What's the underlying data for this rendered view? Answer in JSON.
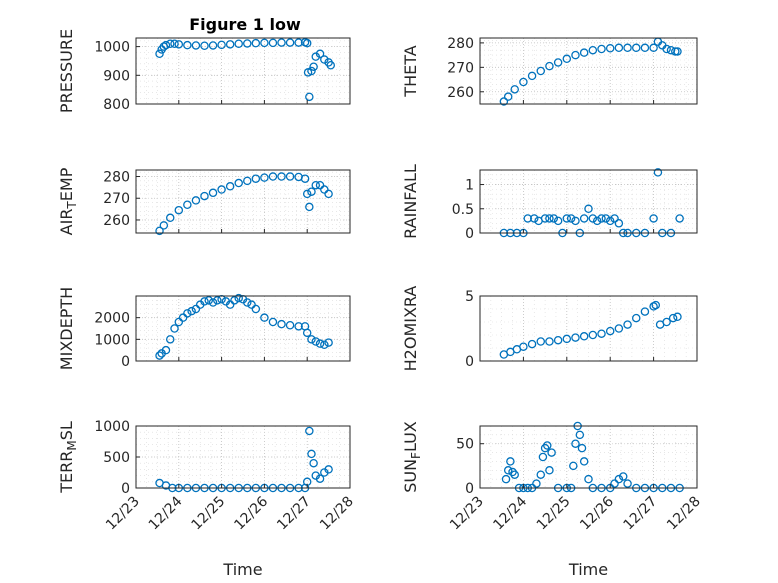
{
  "figure": {
    "title": "Figure 1 low"
  },
  "chart_data": [
    {
      "type": "scatter",
      "ylabel": "PRESSURE",
      "xlabel": "",
      "xlim": [
        0,
        5
      ],
      "ylim": [
        800,
        1030
      ],
      "yticks": [
        800,
        900,
        1000
      ],
      "xticks": [
        0,
        1,
        2,
        3,
        4,
        5
      ],
      "xticklabels": [],
      "marker_color": "#0072BD",
      "grid": true,
      "x": [
        0.55,
        0.6,
        0.65,
        0.7,
        0.8,
        0.9,
        1.0,
        1.2,
        1.4,
        1.6,
        1.8,
        2.0,
        2.2,
        2.4,
        2.6,
        2.8,
        3.0,
        3.2,
        3.4,
        3.6,
        3.8,
        3.95,
        4.0,
        4.02,
        4.05,
        4.1,
        4.15,
        4.2,
        4.3,
        4.4,
        4.5,
        4.55
      ],
      "y": [
        975,
        990,
        1000,
        1005,
        1010,
        1010,
        1008,
        1005,
        1004,
        1003,
        1004,
        1006,
        1008,
        1010,
        1011,
        1012,
        1013,
        1013,
        1014,
        1014,
        1014,
        1015,
        1012,
        910,
        825,
        915,
        930,
        965,
        975,
        955,
        945,
        935
      ]
    },
    {
      "type": "scatter",
      "ylabel": "THETA",
      "xlabel": "",
      "xlim": [
        0,
        5
      ],
      "ylim": [
        255,
        282
      ],
      "yticks": [
        260,
        270,
        280
      ],
      "xticks": [
        0,
        1,
        2,
        3,
        4,
        5
      ],
      "xticklabels": [],
      "marker_color": "#0072BD",
      "grid": true,
      "x": [
        0.55,
        0.65,
        0.8,
        1.0,
        1.2,
        1.4,
        1.6,
        1.8,
        2.0,
        2.2,
        2.4,
        2.6,
        2.8,
        3.0,
        3.2,
        3.4,
        3.6,
        3.8,
        4.0,
        4.1,
        4.2,
        4.3,
        4.4,
        4.5,
        4.55
      ],
      "y": [
        256,
        258,
        261,
        264,
        266.5,
        268.5,
        270.5,
        272,
        273.5,
        275,
        276,
        277,
        277.5,
        277.8,
        278,
        278,
        278,
        278,
        278,
        280.5,
        279,
        277.5,
        277,
        276.5,
        276.5
      ]
    },
    {
      "type": "scatter",
      "ylabel": "AIR_TEMP",
      "xlabel": "",
      "xlim": [
        0,
        5
      ],
      "ylim": [
        254,
        283
      ],
      "yticks": [
        260,
        270,
        280
      ],
      "xticks": [
        0,
        1,
        2,
        3,
        4,
        5
      ],
      "xticklabels": [],
      "marker_color": "#0072BD",
      "grid": true,
      "x": [
        0.55,
        0.65,
        0.8,
        1.0,
        1.2,
        1.4,
        1.6,
        1.8,
        2.0,
        2.2,
        2.4,
        2.6,
        2.8,
        3.0,
        3.2,
        3.4,
        3.6,
        3.8,
        3.95,
        4.0,
        4.05,
        4.1,
        4.2,
        4.3,
        4.4,
        4.5
      ],
      "y": [
        255,
        257.5,
        261,
        264.5,
        267,
        269,
        271,
        272.5,
        274,
        275.5,
        277,
        278,
        279,
        279.5,
        280,
        280,
        280,
        279.8,
        279,
        272,
        266,
        273,
        276,
        276,
        274,
        272
      ]
    },
    {
      "type": "scatter",
      "ylabel": "RAINFALL",
      "xlabel": "",
      "xlim": [
        0,
        5
      ],
      "ylim": [
        0,
        1.3
      ],
      "yticks": [
        0,
        0.5,
        1
      ],
      "yticklabels": [
        "0",
        "0.5",
        "1"
      ],
      "xticks": [
        0,
        1,
        2,
        3,
        4,
        5
      ],
      "xticklabels": [],
      "marker_color": "#0072BD",
      "grid": true,
      "x": [
        0.55,
        0.7,
        0.85,
        1.0,
        1.1,
        1.25,
        1.35,
        1.5,
        1.6,
        1.7,
        1.8,
        1.9,
        2.0,
        2.1,
        2.2,
        2.3,
        2.4,
        2.5,
        2.6,
        2.7,
        2.8,
        2.9,
        3.0,
        3.1,
        3.2,
        3.3,
        3.4,
        3.6,
        3.8,
        4.0,
        4.1,
        4.2,
        4.4,
        4.6
      ],
      "y": [
        0,
        0,
        0,
        0,
        0.3,
        0.3,
        0.25,
        0.3,
        0.3,
        0.3,
        0.25,
        0,
        0.3,
        0.3,
        0.25,
        0,
        0.3,
        0.5,
        0.3,
        0.25,
        0.3,
        0.3,
        0.25,
        0.3,
        0.2,
        0,
        0,
        0,
        0,
        0.3,
        1.25,
        0,
        0,
        0.3
      ]
    },
    {
      "type": "scatter",
      "ylabel": "MIXDEPTH",
      "xlabel": "",
      "xlim": [
        0,
        5
      ],
      "ylim": [
        0,
        3000
      ],
      "yticks": [
        0,
        1000,
        2000
      ],
      "xticks": [
        0,
        1,
        2,
        3,
        4,
        5
      ],
      "xticklabels": [],
      "marker_color": "#0072BD",
      "grid": true,
      "x": [
        0.55,
        0.6,
        0.7,
        0.8,
        0.9,
        1.0,
        1.1,
        1.2,
        1.3,
        1.4,
        1.5,
        1.6,
        1.7,
        1.8,
        1.9,
        2.0,
        2.1,
        2.2,
        2.3,
        2.4,
        2.5,
        2.6,
        2.7,
        2.8,
        3.0,
        3.2,
        3.4,
        3.6,
        3.8,
        3.95,
        4.0,
        4.1,
        4.2,
        4.3,
        4.4,
        4.5
      ],
      "y": [
        250,
        350,
        500,
        1000,
        1500,
        1800,
        2000,
        2200,
        2300,
        2400,
        2600,
        2750,
        2800,
        2700,
        2800,
        2850,
        2750,
        2600,
        2800,
        2900,
        2850,
        2700,
        2600,
        2400,
        2000,
        1800,
        1700,
        1650,
        1600,
        1600,
        1300,
        1000,
        900,
        800,
        750,
        850
      ]
    },
    {
      "type": "scatter",
      "ylabel": "H2OMIXRA",
      "xlabel": "",
      "xlim": [
        0,
        5
      ],
      "ylim": [
        0,
        5
      ],
      "yticks": [
        0,
        5
      ],
      "xticks": [
        0,
        1,
        2,
        3,
        4,
        5
      ],
      "xticklabels": [],
      "marker_color": "#0072BD",
      "grid": true,
      "x": [
        0.55,
        0.7,
        0.85,
        1.0,
        1.2,
        1.4,
        1.6,
        1.8,
        2.0,
        2.2,
        2.4,
        2.6,
        2.8,
        3.0,
        3.2,
        3.4,
        3.6,
        3.8,
        4.0,
        4.05,
        4.15,
        4.3,
        4.45,
        4.55
      ],
      "y": [
        0.5,
        0.7,
        0.9,
        1.1,
        1.3,
        1.5,
        1.5,
        1.6,
        1.7,
        1.8,
        1.9,
        2.0,
        2.1,
        2.3,
        2.5,
        2.8,
        3.3,
        3.8,
        4.2,
        4.3,
        2.8,
        3.0,
        3.3,
        3.4
      ]
    },
    {
      "type": "scatter",
      "ylabel": "TERR_MSL",
      "xlabel": "Time",
      "xlim": [
        0,
        5
      ],
      "ylim": [
        0,
        1000
      ],
      "yticks": [
        0,
        500,
        1000
      ],
      "xticks": [
        0,
        1,
        2,
        3,
        4,
        5
      ],
      "xticklabels": [
        "12/23",
        "12/24",
        "12/25",
        "12/26",
        "12/27",
        "12/28"
      ],
      "marker_color": "#0072BD",
      "grid": true,
      "x": [
        0.55,
        0.7,
        0.85,
        1.0,
        1.2,
        1.4,
        1.6,
        1.8,
        2.0,
        2.2,
        2.4,
        2.6,
        2.8,
        3.0,
        3.2,
        3.4,
        3.6,
        3.8,
        3.95,
        4.0,
        4.05,
        4.1,
        4.15,
        4.2,
        4.3,
        4.4,
        4.5
      ],
      "y": [
        80,
        40,
        0,
        0,
        0,
        0,
        0,
        0,
        0,
        0,
        0,
        0,
        0,
        0,
        0,
        0,
        0,
        0,
        0,
        100,
        920,
        550,
        400,
        200,
        150,
        250,
        300
      ]
    },
    {
      "type": "scatter",
      "ylabel": "SUN_FLUX",
      "xlabel": "Time",
      "xlim": [
        0,
        5
      ],
      "ylim": [
        0,
        70
      ],
      "yticks": [
        0,
        50
      ],
      "xticks": [
        0,
        1,
        2,
        3,
        4,
        5
      ],
      "xticklabels": [
        "12/23",
        "12/24",
        "12/25",
        "12/26",
        "12/27",
        "12/28"
      ],
      "marker_color": "#0072BD",
      "grid": true,
      "x": [
        0.6,
        0.65,
        0.7,
        0.75,
        0.8,
        0.9,
        1.0,
        1.1,
        1.2,
        1.3,
        1.4,
        1.45,
        1.5,
        1.55,
        1.6,
        1.65,
        1.8,
        2.0,
        2.1,
        2.15,
        2.2,
        2.25,
        2.3,
        2.35,
        2.4,
        2.5,
        2.6,
        2.8,
        3.0,
        3.1,
        3.2,
        3.3,
        3.4,
        3.6,
        3.8,
        4.0,
        4.2,
        4.4,
        4.6
      ],
      "y": [
        10,
        20,
        30,
        18,
        15,
        0,
        0,
        0,
        0,
        5,
        15,
        35,
        45,
        48,
        20,
        40,
        0,
        0,
        0,
        25,
        50,
        70,
        60,
        45,
        30,
        10,
        0,
        0,
        0,
        5,
        10,
        13,
        5,
        0,
        0,
        0,
        0,
        0,
        0
      ]
    }
  ]
}
